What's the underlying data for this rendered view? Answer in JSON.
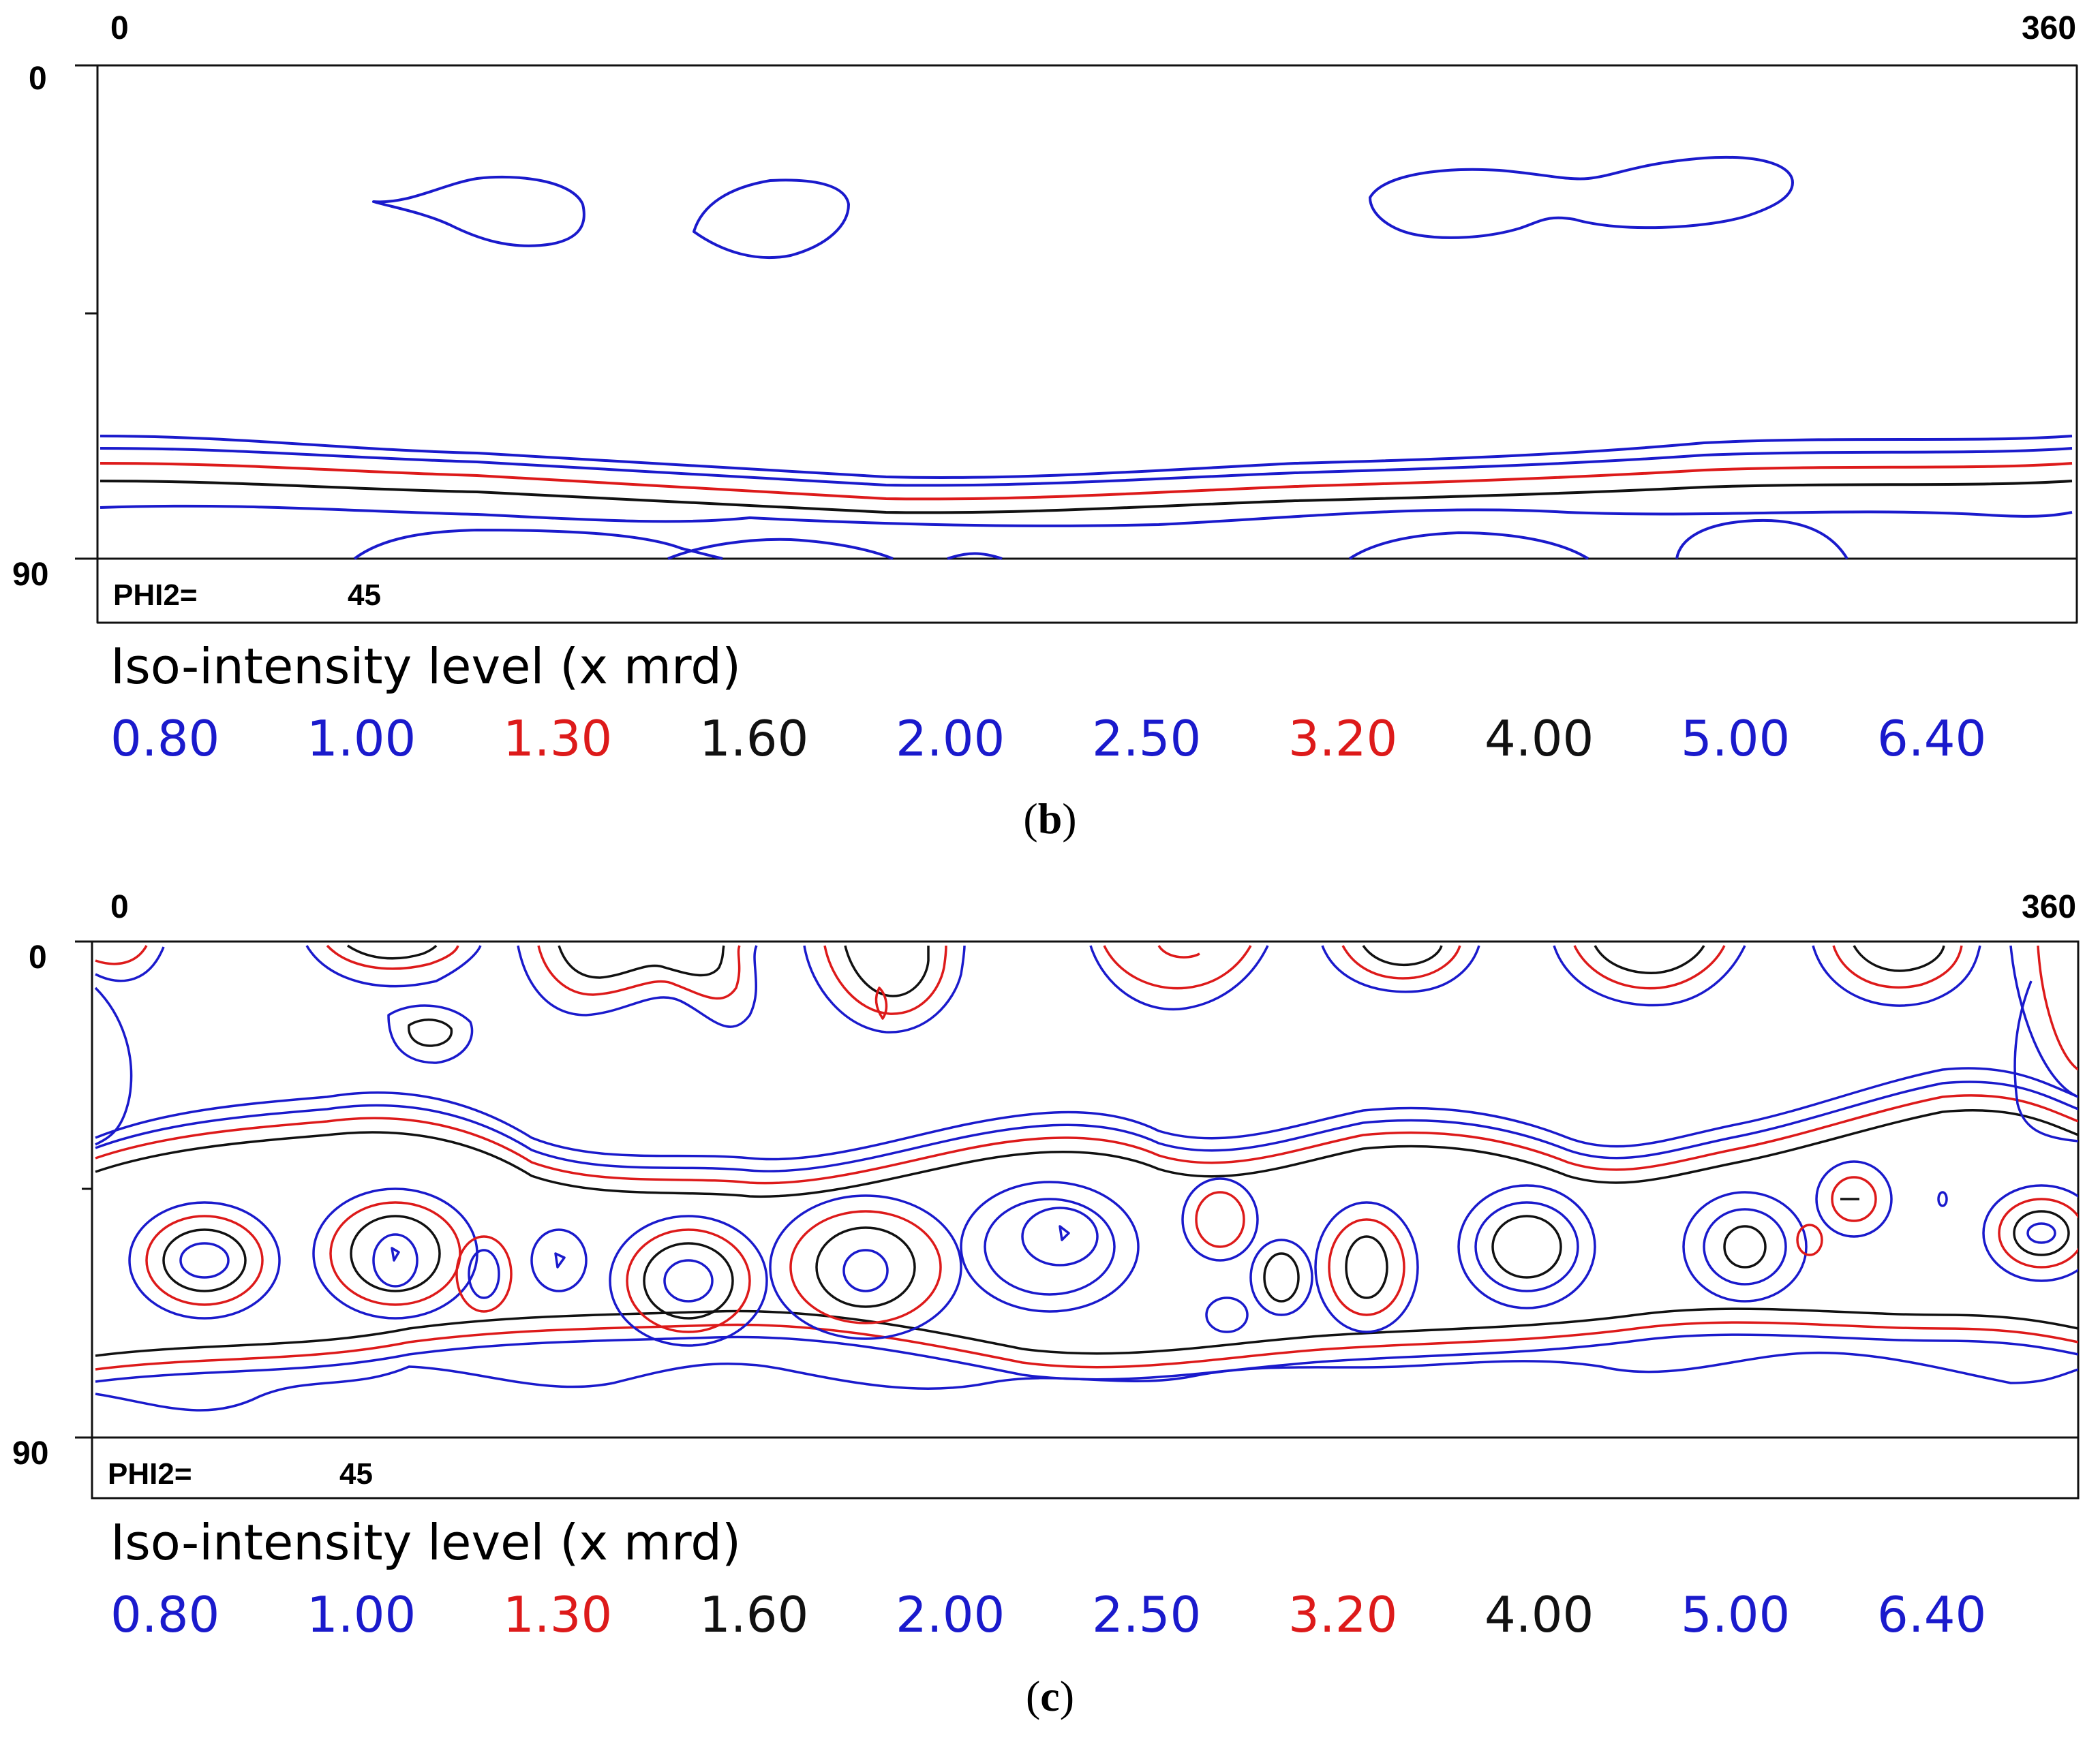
{
  "chart_data": [
    {
      "type": "contour",
      "panel": "b",
      "x_axis": {
        "min_label": "0",
        "max_label": "360",
        "range": [
          0,
          360
        ]
      },
      "y_axis": {
        "min_label": "0",
        "max_label": "90",
        "range": [
          0,
          90
        ]
      },
      "section_label": "PHI2=",
      "section_value": "45",
      "legend_title": "Iso-intensity level (x mrd)",
      "levels": [
        {
          "value": "0.80",
          "color": "#1a1acc"
        },
        {
          "value": "1.00",
          "color": "#1a1acc"
        },
        {
          "value": "1.30",
          "color": "#dd1a1a"
        },
        {
          "value": "1.60",
          "color": "#111111"
        },
        {
          "value": "2.00",
          "color": "#1a1acc"
        },
        {
          "value": "2.50",
          "color": "#1a1acc"
        },
        {
          "value": "3.20",
          "color": "#dd1a1a"
        },
        {
          "value": "4.00",
          "color": "#111111"
        },
        {
          "value": "5.00",
          "color": "#1a1acc"
        },
        {
          "value": "6.40",
          "color": "#1a1acc"
        }
      ],
      "caption": "b"
    },
    {
      "type": "contour",
      "panel": "c",
      "x_axis": {
        "min_label": "0",
        "max_label": "360",
        "range": [
          0,
          360
        ]
      },
      "y_axis": {
        "min_label": "0",
        "max_label": "90",
        "range": [
          0,
          90
        ]
      },
      "section_label": "PHI2=",
      "section_value": "45",
      "legend_title": "Iso-intensity level (x mrd)",
      "levels": [
        {
          "value": "0.80",
          "color": "#1a1acc"
        },
        {
          "value": "1.00",
          "color": "#1a1acc"
        },
        {
          "value": "1.30",
          "color": "#dd1a1a"
        },
        {
          "value": "1.60",
          "color": "#111111"
        },
        {
          "value": "2.00",
          "color": "#1a1acc"
        },
        {
          "value": "2.50",
          "color": "#1a1acc"
        },
        {
          "value": "3.20",
          "color": "#dd1a1a"
        },
        {
          "value": "4.00",
          "color": "#111111"
        },
        {
          "value": "5.00",
          "color": "#1a1acc"
        },
        {
          "value": "6.40",
          "color": "#1a1acc"
        }
      ],
      "caption": "c"
    }
  ]
}
